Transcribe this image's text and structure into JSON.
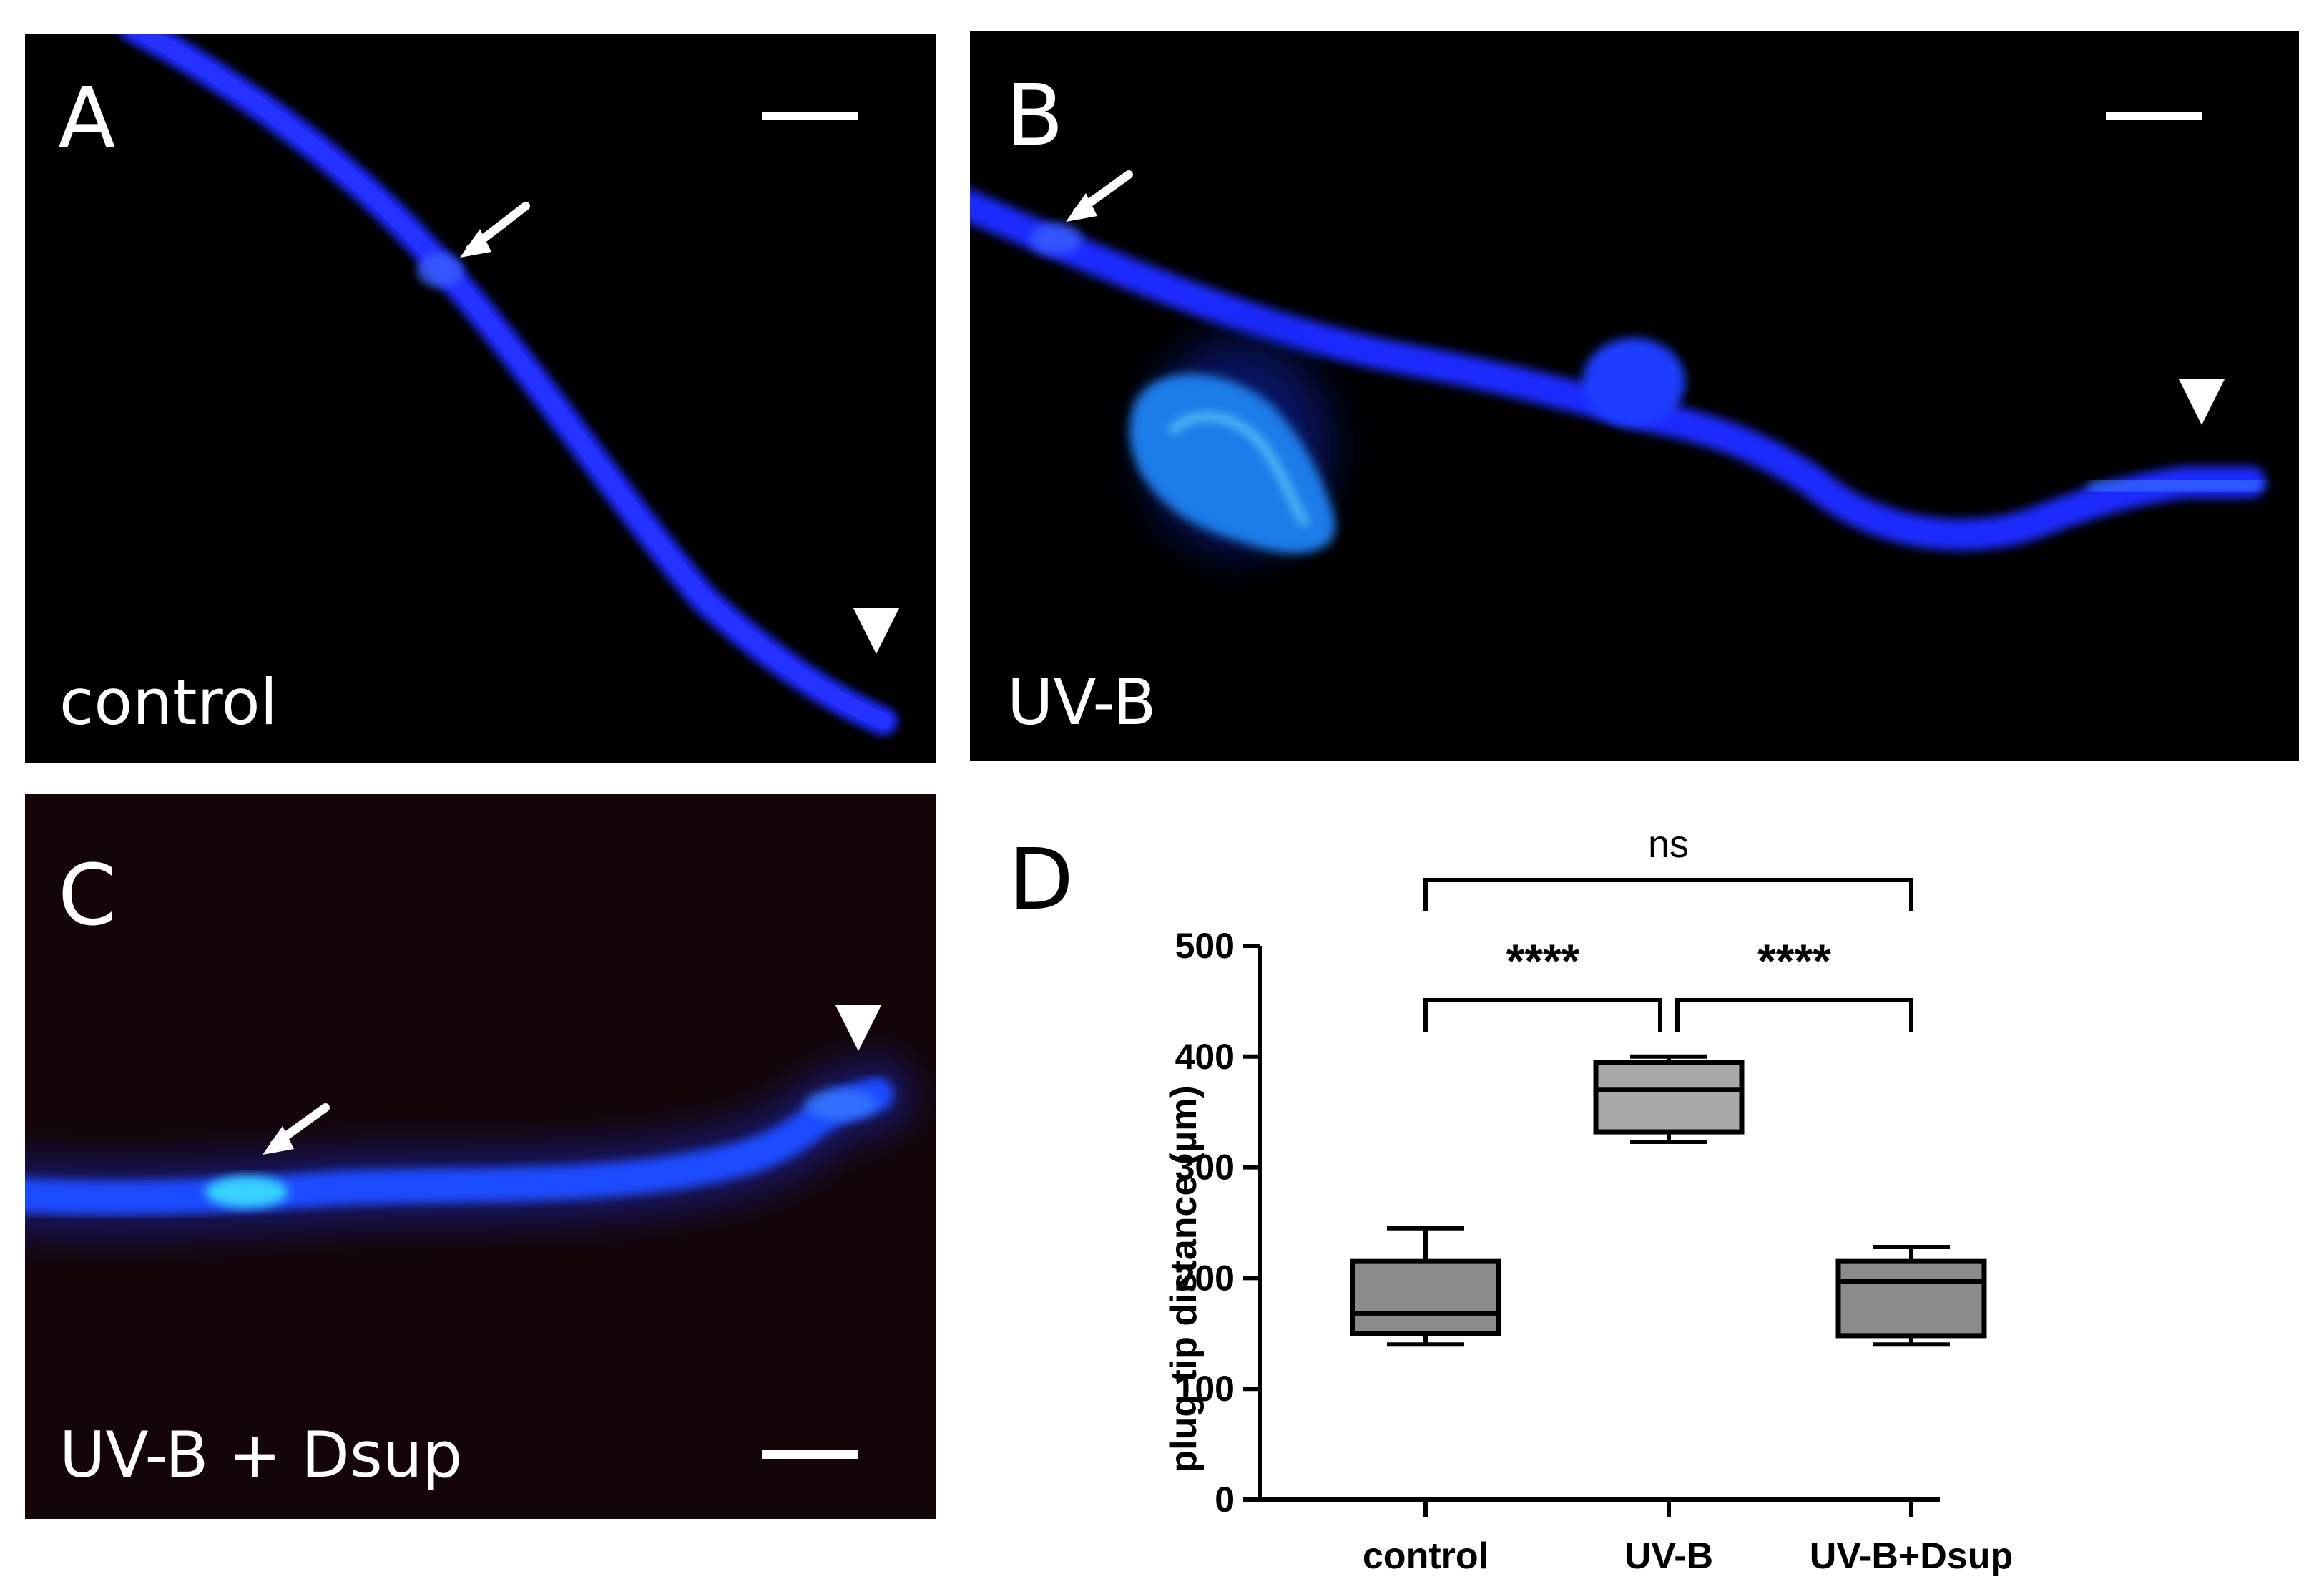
{
  "panels": {
    "a": {
      "letter": "A",
      "condition": "control"
    },
    "b": {
      "letter": "B",
      "condition": "UV-B"
    },
    "c": {
      "letter": "C",
      "condition": "UV-B + Dsup"
    },
    "d": {
      "letter": "D"
    }
  },
  "colors": {
    "tube": "#1e2bff",
    "tube_bright": "#3a78ff",
    "plug": "#28c8ff",
    "box_fill_dark": "#8a8a8a",
    "box_fill_light": "#a8a8a8",
    "annotation": "#ffffff"
  },
  "icons": {
    "plug_marker": "arrow-icon",
    "tip_marker": "arrowhead-icon"
  },
  "chart_data": {
    "type": "box",
    "ylabel": "plug-tip distance (µm)",
    "xlabel": "",
    "ylim": [
      0,
      500
    ],
    "yticks": [
      0,
      100,
      200,
      300,
      400,
      500
    ],
    "categories": [
      "control",
      "UV-B",
      "UV-B+Dsup"
    ],
    "boxes": [
      {
        "category": "control",
        "min": 140,
        "q1": 150,
        "median": 168,
        "q3": 215,
        "max": 245,
        "fill": "#8a8a8a"
      },
      {
        "category": "UV-B",
        "min": 323,
        "q1": 332,
        "median": 370,
        "q3": 395,
        "max": 400,
        "fill": "#a8a8a8"
      },
      {
        "category": "UV-B+Dsup",
        "min": 140,
        "q1": 148,
        "median": 197,
        "q3": 215,
        "max": 228,
        "fill": "#8a8a8a"
      }
    ],
    "comparisons": [
      {
        "from": "control",
        "to": "UV-B",
        "label": "****"
      },
      {
        "from": "UV-B",
        "to": "UV-B+Dsup",
        "label": "****"
      },
      {
        "from": "control",
        "to": "UV-B+Dsup",
        "label": "ns"
      }
    ]
  }
}
